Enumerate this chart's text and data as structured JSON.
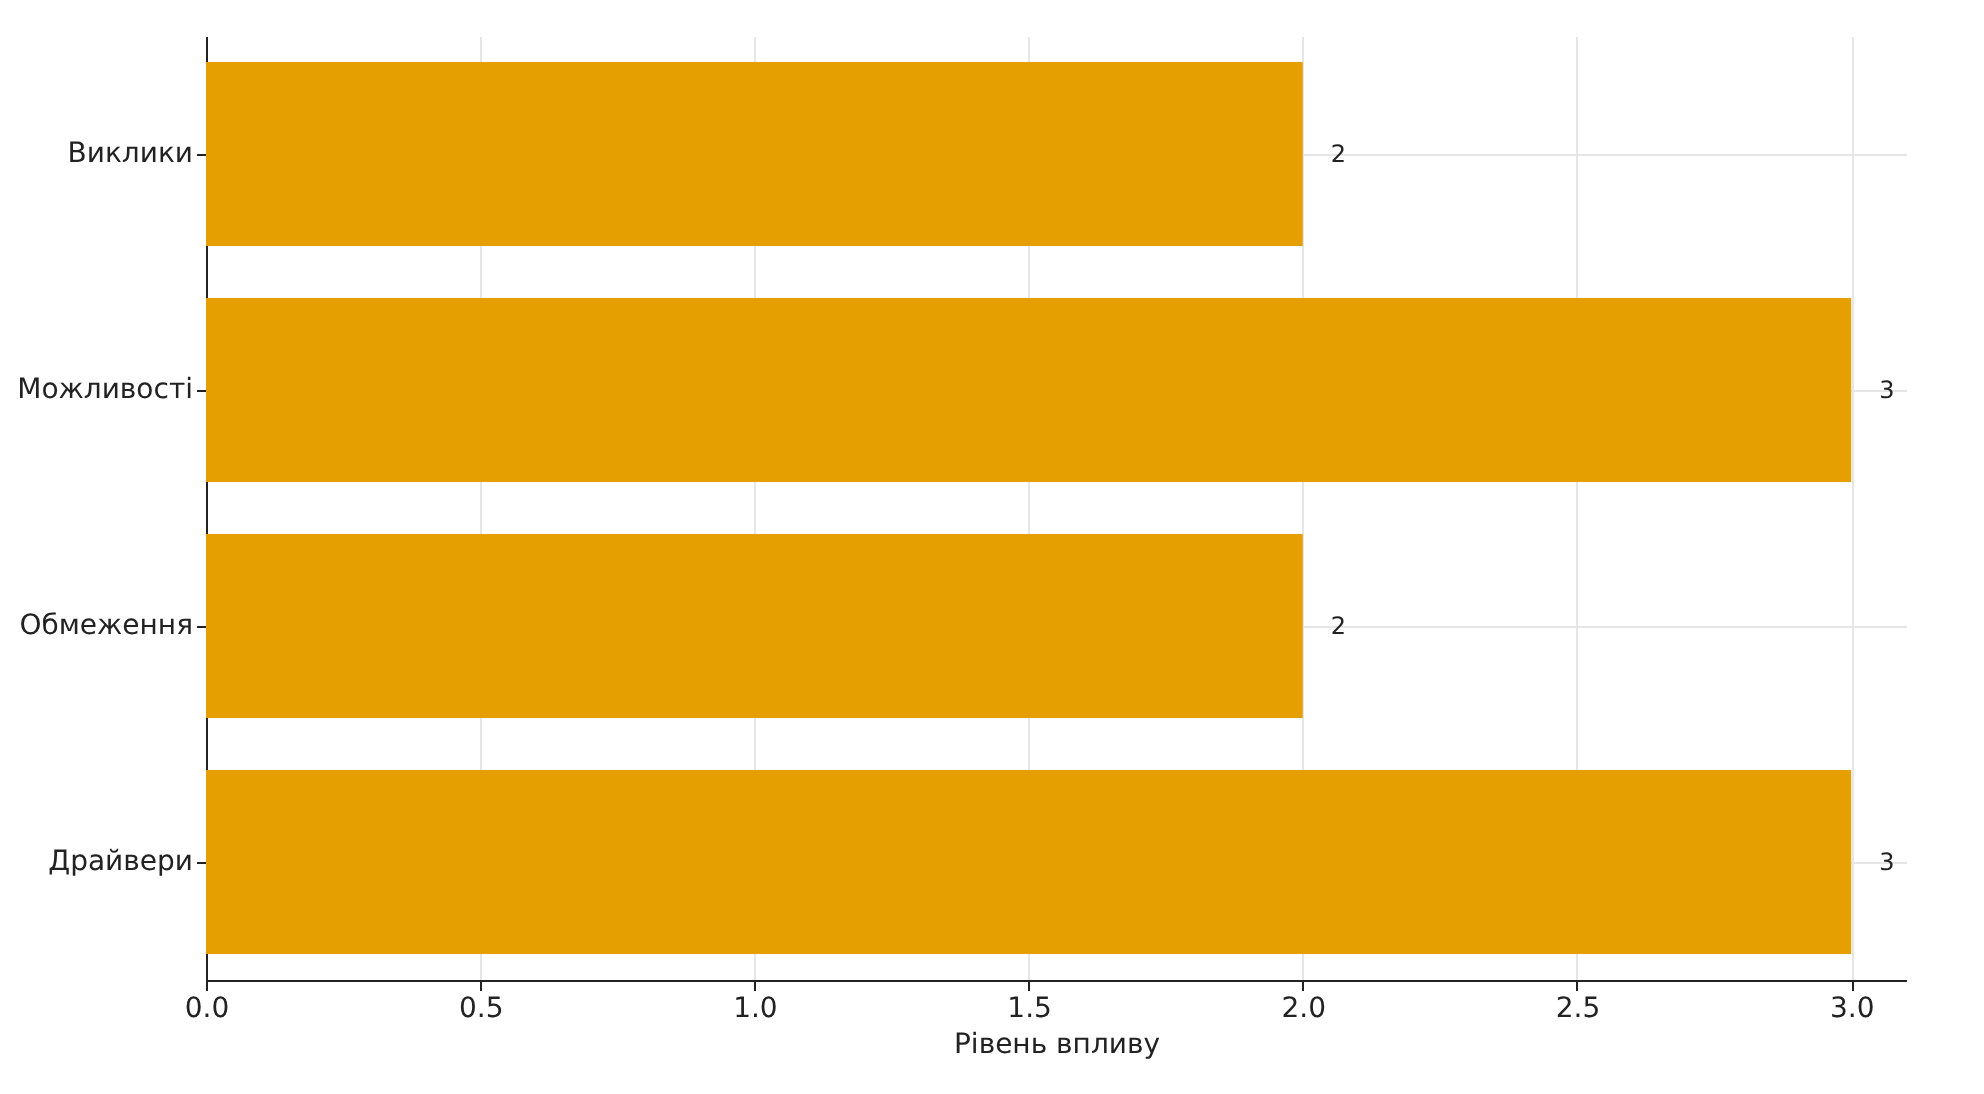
{
  "chart_data": {
    "type": "bar",
    "orientation": "horizontal",
    "xlabel": "Рівень впливу",
    "categories": [
      "Виклики",
      "Можливості",
      "Обмеження",
      "Драйвери"
    ],
    "values": [
      2,
      3,
      2,
      3
    ],
    "color": "#e69f00",
    "xlim": [
      0,
      3.1
    ],
    "xticks": [
      {
        "value": 0,
        "label": "0.0"
      },
      {
        "value": 0.5,
        "label": "0.5"
      },
      {
        "value": 1,
        "label": "1.0"
      },
      {
        "value": 1.5,
        "label": "1.5"
      },
      {
        "value": 2,
        "label": "2.0"
      },
      {
        "value": 2.5,
        "label": "2.5"
      },
      {
        "value": 3,
        "label": "3.0"
      }
    ],
    "grid": true,
    "data_labels": true
  }
}
